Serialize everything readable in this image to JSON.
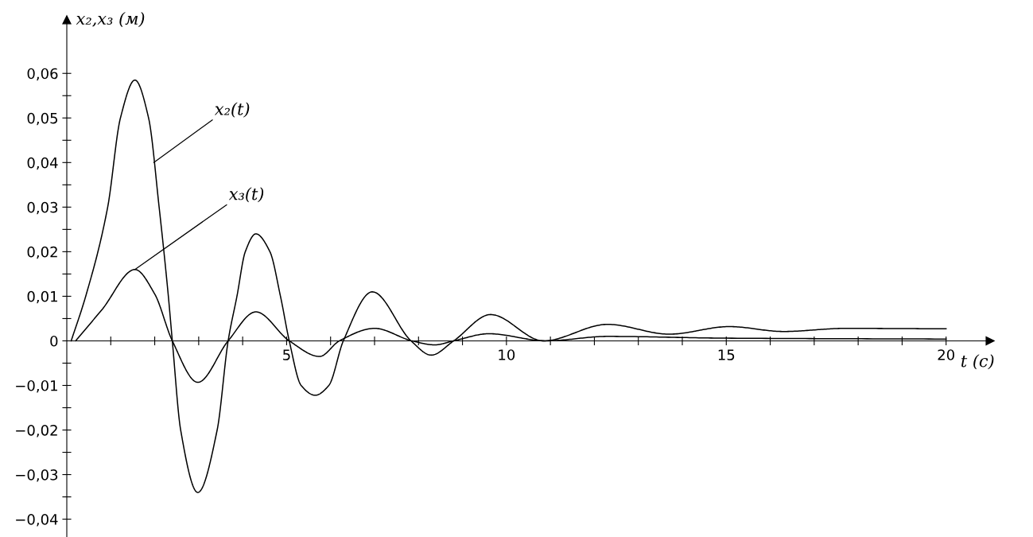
{
  "chart_data": {
    "type": "line",
    "xlabel": "t (с)",
    "ylabel": "x₂,x₃ (м)",
    "xlim": [
      0,
      21
    ],
    "ylim": [
      -0.044,
      0.072
    ],
    "xticks": [
      {
        "value": 1,
        "label": null
      },
      {
        "value": 2,
        "label": null
      },
      {
        "value": 3,
        "label": null
      },
      {
        "value": 4,
        "label": null
      },
      5,
      {
        "value": 6,
        "label": null
      },
      {
        "value": 7,
        "label": null
      },
      {
        "value": 8,
        "label": null
      },
      {
        "value": 9,
        "label": null
      },
      10,
      {
        "value": 11,
        "label": null
      },
      {
        "value": 12,
        "label": null
      },
      {
        "value": 13,
        "label": null
      },
      {
        "value": 14,
        "label": null
      },
      15,
      {
        "value": 16,
        "label": null
      },
      {
        "value": 17,
        "label": null
      },
      {
        "value": 18,
        "label": null
      },
      {
        "value": 19,
        "label": null
      },
      20
    ],
    "yticks": [
      {
        "value": -0.04,
        "label": "−0,04"
      },
      {
        "value": -0.035,
        "label": null
      },
      {
        "value": -0.03,
        "label": "−0,03"
      },
      {
        "value": -0.025,
        "label": null
      },
      {
        "value": -0.02,
        "label": "−0,02"
      },
      {
        "value": -0.015,
        "label": null
      },
      {
        "value": -0.01,
        "label": "−0,01"
      },
      {
        "value": -0.005,
        "label": null
      },
      {
        "value": 0,
        "label": "0"
      },
      {
        "value": 0.005,
        "label": null
      },
      {
        "value": 0.01,
        "label": "0,01"
      },
      {
        "value": 0.015,
        "label": null
      },
      {
        "value": 0.02,
        "label": "0,02"
      },
      {
        "value": 0.025,
        "label": null
      },
      {
        "value": 0.03,
        "label": "0,03"
      },
      {
        "value": 0.035,
        "label": null
      },
      {
        "value": 0.04,
        "label": "0,04"
      },
      {
        "value": 0.045,
        "label": null
      },
      {
        "value": 0.05,
        "label": "0,05"
      },
      {
        "value": 0.055,
        "label": null
      },
      {
        "value": 0.06,
        "label": "0,06"
      }
    ],
    "grid": false,
    "legend": false,
    "marker": "none",
    "line_style": "solid",
    "series": [
      {
        "color": "#000000",
        "x": [
          0.1,
          0.43,
          0.93,
          1.22,
          1.55,
          1.86,
          2.1,
          2.31,
          2.4,
          2.59,
          2.98,
          3.42,
          3.67,
          3.87,
          4.06,
          4.3,
          4.62,
          4.86,
          5.06,
          5.33,
          5.65,
          5.96,
          6.29,
          6.95,
          7.83,
          8.29,
          8.8,
          9.64,
          10.84,
          12.3,
          13.7,
          15.07,
          16.3,
          17.7,
          20.0
        ],
        "values": [
          0,
          0.01,
          0.03,
          0.05,
          0.0585,
          0.05,
          0.03,
          0.01,
          0,
          -0.02,
          -0.034,
          -0.02,
          0,
          0.01,
          0.02,
          0.024,
          0.02,
          0.01,
          0,
          -0.01,
          -0.0122,
          -0.01,
          0,
          0.011,
          0,
          -0.0032,
          0,
          0.0059,
          0,
          0.0037,
          0.0015,
          0.0032,
          0.0021,
          0.0028,
          0.0027
        ]
      },
      {
        "color": "#000000",
        "x": [
          0.2,
          0.8,
          1.55,
          2.0,
          2.4,
          2.98,
          3.67,
          4.3,
          5.06,
          5.75,
          6.2,
          7.0,
          7.85,
          8.37,
          8.8,
          9.6,
          10.9,
          12.3,
          15.0,
          20.0
        ],
        "values": [
          0,
          0.007,
          0.016,
          0.0105,
          0,
          -0.0093,
          0,
          0.0065,
          0,
          -0.0035,
          0,
          0.0028,
          0,
          -0.0009,
          0,
          0.0016,
          0,
          0.001,
          0.0006,
          0.0004
        ]
      }
    ],
    "annotations": [
      {
        "text": "x₂(t)",
        "x": 1.98,
        "y": 0.04
      },
      {
        "text": "x₃(t)",
        "x": 1.55,
        "y": 0.016
      }
    ]
  }
}
